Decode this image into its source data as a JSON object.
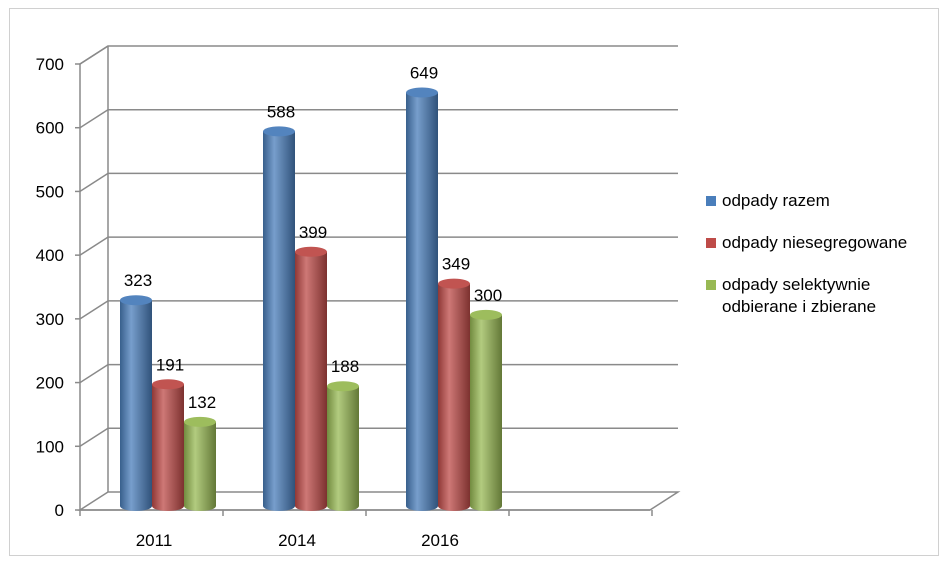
{
  "chart_data": {
    "type": "bar",
    "categories": [
      "2011",
      "2014",
      "2016"
    ],
    "series": [
      {
        "name": "odpady razem",
        "values": [
          323,
          588,
          649
        ],
        "color": "#4a7ebb"
      },
      {
        "name": "odpady niesegregowane",
        "values": [
          191,
          399,
          349
        ],
        "color": "#be4b48"
      },
      {
        "name": "odpady selektywnie odbierane i zbierane",
        "values": [
          132,
          188,
          300
        ],
        "color": "#98b954"
      }
    ],
    "yticks": [
      "0",
      "100",
      "200",
      "300",
      "400",
      "500",
      "600",
      "700"
    ],
    "ylim": [
      0,
      700
    ],
    "grid": true,
    "legend": "right",
    "style": "3d-cylinder"
  }
}
